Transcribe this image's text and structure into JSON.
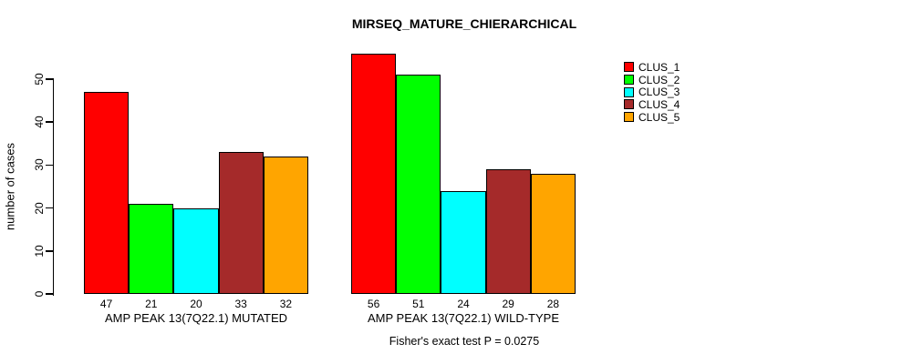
{
  "page": {
    "background": "#FFFFFF",
    "text_color": "#000000",
    "axis_color": "#000000"
  },
  "chart_data": {
    "type": "bar",
    "title": "MIRSEQ_MATURE_CHIERARCHICAL",
    "ylabel": "number of cases",
    "xlabel": "",
    "ylim": [
      0,
      50
    ],
    "yticks": [
      0,
      10,
      20,
      30,
      40,
      50
    ],
    "grid": false,
    "legend_position": "top-right",
    "bar_value_labels_shown": true,
    "series": [
      {
        "name": "CLUS_1",
        "color": "#FF0000"
      },
      {
        "name": "CLUS_2",
        "color": "#00FF00"
      },
      {
        "name": "CLUS_3",
        "color": "#00FFFF"
      },
      {
        "name": "CLUS_4",
        "color": "#A52A2A"
      },
      {
        "name": "CLUS_5",
        "color": "#FFA500"
      }
    ],
    "groups": [
      {
        "label": "AMP PEAK 13(7Q22.1) MUTATED",
        "values": [
          47,
          21,
          20,
          33,
          32
        ]
      },
      {
        "label": "AMP PEAK 13(7Q22.1) WILD-TYPE",
        "values": [
          56,
          51,
          24,
          29,
          28
        ]
      }
    ],
    "annotation": "Fisher's exact test P = 0.0275"
  }
}
